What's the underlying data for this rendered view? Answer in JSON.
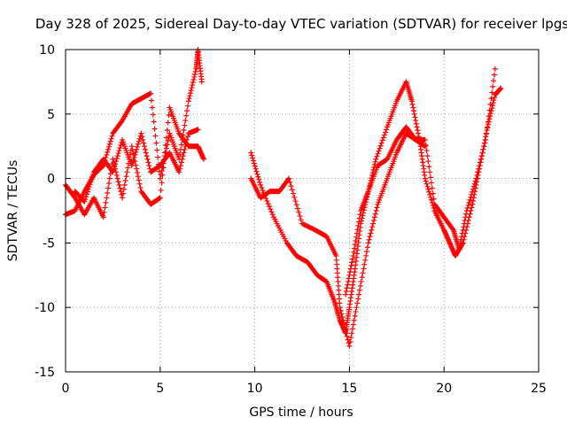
{
  "chart_data": {
    "type": "scatter",
    "title": "Day 328 of 2025, Sidereal Day-to-day VTEC variation (SDTVAR) for receiver lpgs",
    "xlabel": "GPS time / hours",
    "ylabel": "SDTVAR / TECUs",
    "xlim": [
      0,
      25
    ],
    "ylim": [
      -15,
      10
    ],
    "xticks": [
      "0",
      "5",
      "10",
      "15",
      "20",
      "25"
    ],
    "yticks": [
      "10",
      "5",
      "0",
      "-5",
      "-10",
      "-15"
    ],
    "grid": true,
    "marker": "+",
    "series": [
      {
        "name": "trace-1",
        "color": "#ff0000",
        "x": [
          0.0,
          0.5,
          1.0,
          1.5,
          2.0,
          2.5,
          3.0,
          3.5,
          4.0,
          4.5,
          5.0,
          5.5,
          6.0,
          6.5,
          6.9,
          7.0,
          7.2
        ],
        "y": [
          -2.8,
          -2.5,
          -1.0,
          0.3,
          1.0,
          3.5,
          4.5,
          5.8,
          6.2,
          6.6,
          0.0,
          3.5,
          1.5,
          6.0,
          8.5,
          10.0,
          7.5
        ]
      },
      {
        "name": "trace-2",
        "color": "#ff0000",
        "x": [
          0.0,
          0.5,
          1.0,
          1.5,
          2.0,
          2.5,
          3.0,
          3.5,
          4.0,
          4.5,
          5.0,
          5.5,
          6.0,
          6.5,
          7.0,
          7.3
        ],
        "y": [
          -0.5,
          -1.5,
          -2.8,
          -1.5,
          -3.0,
          1.5,
          -1.5,
          2.5,
          -1.0,
          -2.0,
          -1.5,
          5.5,
          3.5,
          2.5,
          2.5,
          1.5
        ]
      },
      {
        "name": "trace-3",
        "color": "#ff0000",
        "x": [
          0.5,
          1.0,
          1.5,
          2.0,
          2.5,
          3.0,
          3.5,
          4.0,
          4.5,
          5.0,
          5.5,
          6.0,
          6.5,
          7.0
        ],
        "y": [
          -1.0,
          -1.8,
          0.5,
          1.5,
          0.5,
          3.0,
          1.0,
          3.5,
          0.5,
          1.0,
          2.0,
          0.5,
          3.5,
          3.8
        ]
      },
      {
        "name": "trace-4",
        "color": "#ff0000",
        "x": [
          9.8,
          10.3,
          11.0,
          11.7,
          12.2,
          12.8,
          13.3,
          13.8,
          14.2,
          14.5,
          14.8,
          15.0,
          15.3,
          15.6,
          16.0,
          16.4,
          17.0,
          17.5,
          18.0,
          18.3,
          18.7,
          19.0,
          19.5,
          20.0,
          20.3,
          20.6,
          21.0,
          21.5,
          21.9,
          22.3,
          22.7,
          23.0
        ],
        "y": [
          2.0,
          -0.5,
          -3.0,
          -5.0,
          -6.0,
          -6.5,
          -7.5,
          -8.0,
          -9.5,
          -11.0,
          -12.0,
          -10.0,
          -7.0,
          -3.5,
          -1.0,
          1.5,
          4.0,
          6.0,
          7.5,
          6.0,
          3.0,
          0.0,
          -2.5,
          -4.0,
          -5.0,
          -6.0,
          -5.0,
          -2.0,
          1.0,
          4.0,
          6.5,
          7.0
        ]
      },
      {
        "name": "trace-5",
        "color": "#ff0000",
        "x": [
          9.8,
          10.3,
          10.8,
          11.3,
          11.8,
          12.5,
          13.2,
          13.8,
          14.3,
          14.5,
          15.0,
          15.5,
          16.0,
          16.5,
          17.0,
          17.5,
          18.0,
          18.5,
          19.0,
          19.5,
          20.0,
          20.5,
          20.8,
          21.2,
          21.7,
          22.2,
          22.7
        ],
        "y": [
          0.0,
          -1.5,
          -1.0,
          -1.0,
          0.0,
          -3.5,
          -4.0,
          -4.5,
          -6.0,
          -10.0,
          -13.0,
          -9.0,
          -5.0,
          -2.0,
          0.0,
          2.0,
          3.5,
          3.0,
          3.0,
          -2.0,
          -3.0,
          -4.0,
          -5.5,
          -2.5,
          0.0,
          3.0,
          8.5
        ]
      },
      {
        "name": "trace-6",
        "color": "#ff0000",
        "x": [
          14.8,
          15.2,
          15.6,
          16.0,
          16.5,
          17.0,
          17.5,
          18.0,
          18.5,
          19.0
        ],
        "y": [
          -9.0,
          -6.0,
          -2.5,
          -1.0,
          1.0,
          1.5,
          3.0,
          4.0,
          3.0,
          2.5
        ]
      }
    ]
  }
}
